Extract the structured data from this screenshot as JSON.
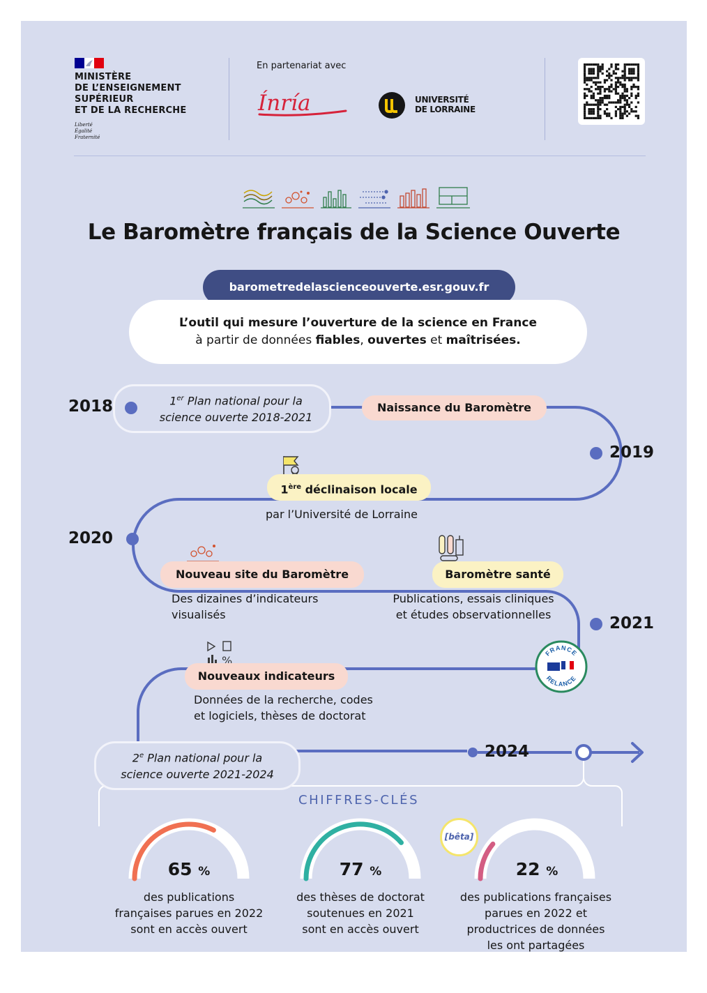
{
  "header": {
    "ministry_lines": [
      "MINISTÈRE",
      "DE L’ENSEIGNEMENT",
      "SUPÉRIEUR",
      "ET DE LA RECHERCHE"
    ],
    "motto": [
      "Liberté",
      "Égalité",
      "Fraternité"
    ],
    "partner_label": "En partenariat avec",
    "inria": "Ínría",
    "ul_lines": [
      "UNIVERSITÉ",
      "DE LORRAINE"
    ]
  },
  "title": "Le Baromètre français de la Science Ouverte",
  "url": "barometredelascienceouverte.esr.gouv.fr",
  "tagline": {
    "line1": "L’outil qui mesure l’ouverture de la science en France",
    "line2_prefix": "à partir de données ",
    "w1": "fiables",
    "sep1": ", ",
    "w2": "ouvertes",
    "sep2": " et ",
    "w3": "maîtrisées."
  },
  "timeline": {
    "y2018": "2018",
    "plan1_sup": "er",
    "plan1_line1": " Plan national pour la",
    "plan1_line2": "science ouverte 2018-2021",
    "plan1_num": "1",
    "naissance": "Naissance du Baromètre",
    "y2019": "2019",
    "decl_num": "1",
    "decl_sup": "ère",
    "decl_label": " déclinaison locale",
    "decl_sub": "par l’Université de Lorraine",
    "y2020": "2020",
    "nouveau_site": "Nouveau site du Baromètre",
    "nouveau_site_sub1": "Des dizaines d’indicateurs",
    "nouveau_site_sub2": "visualisés",
    "sante": "Baromètre santé",
    "sante_sub1": "Publications, essais cliniques",
    "sante_sub2": "et études observationnelles",
    "y2021": "2021",
    "relance_top": "FRANCE",
    "relance_bottom": "RELANCE",
    "nouveaux_ind": "Nouveaux indicateurs",
    "nouveaux_ind_sub1": "Données de la recherche, codes",
    "nouveaux_ind_sub2": "et logiciels, thèses de doctorat",
    "plan2_num": "2",
    "plan2_sup": "e",
    "plan2_line1": " Plan national pour la",
    "plan2_line2": "science ouverte 2021-2024",
    "y2024": "2024"
  },
  "chiffres_title": "CHIFFRES-CLÉS",
  "gauges": [
    {
      "value": 65,
      "unit": "%",
      "color": "#f07052",
      "lines": [
        "des publications",
        "françaises parues en 2022",
        "sont en accès ouvert"
      ]
    },
    {
      "value": 77,
      "unit": "%",
      "color": "#2fb0a2",
      "lines": [
        "des thèses de doctorat",
        "soutenues en 2021",
        "sont en accès ouvert"
      ]
    },
    {
      "value": 22,
      "unit": "%",
      "color": "#d35d83",
      "lines": [
        "des publications françaises",
        "parues en 2022 et",
        "productrices de données",
        "les ont partagées"
      ]
    }
  ],
  "beta": "[bêta]",
  "colors": {
    "background": "#d7dcee",
    "timeline": "#5a6dc0",
    "url_pill": "#3f4d84",
    "pill_pink": "#f9d9d0",
    "pill_yellow": "#fbf2c4",
    "chiffres": "#4e64ad"
  }
}
